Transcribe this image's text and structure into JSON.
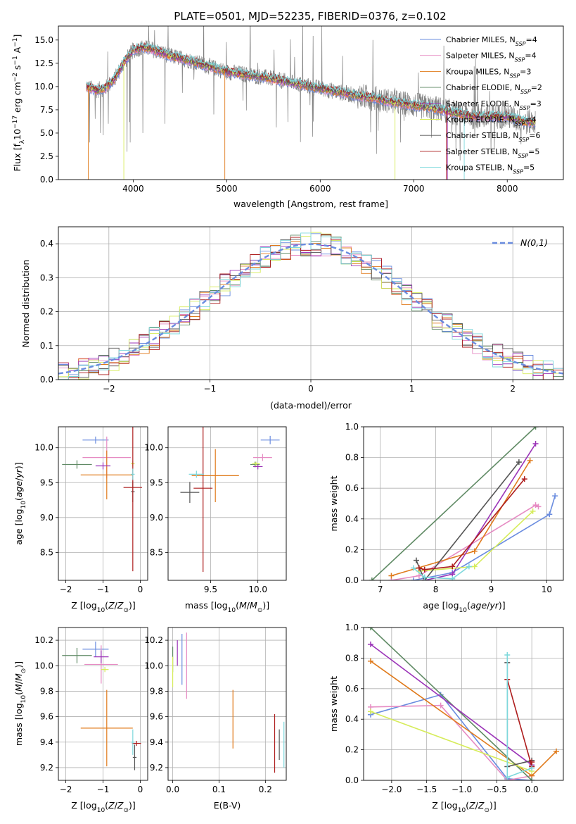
{
  "figure_title": "PLATE=0501, MJD=52235, FIBERID=0376, z=0.102",
  "colors": {
    "Chabrier MILES": "#6a8cdf",
    "Salpeter MILES": "#e68bc3",
    "Kroupa MILES": "#e07b1c",
    "Chabrier ELODIE": "#5f8a64",
    "Salpeter ELODIE": "#9b34b8",
    "Kroupa ELODIE": "#d6ec5a",
    "Chabrier STELIB": "#555555",
    "Salpeter STELIB": "#ae1d1d",
    "Kroupa STELIB": "#7dd8dc",
    "data": "#808080"
  },
  "chart_data": [
    {
      "id": "spectrum",
      "type": "line",
      "title": "PLATE=0501, MJD=52235, FIBERID=0376, z=0.102",
      "xlabel": "wavelength [Angstrom, rest frame]",
      "ylabel": "Flux [f_λ 10^-17 erg cm^-2 s^-1 A^-1]",
      "xlim": [
        3200,
        8600
      ],
      "ylim": [
        0,
        16.5
      ],
      "xticks": [
        4000,
        5000,
        6000,
        7000,
        8000
      ],
      "yticks": [
        0.0,
        2.5,
        5.0,
        7.5,
        10.0,
        12.5,
        15.0
      ],
      "grid": false,
      "legend_position": "top-right",
      "continuum": {
        "x": [
          3500,
          3600,
          3700,
          3800,
          3900,
          4000,
          4100,
          4200,
          4400,
          4600,
          4800,
          5000,
          5200,
          5400,
          5600,
          5800,
          6000,
          6200,
          6400,
          6600,
          6800,
          7000,
          7200,
          7400,
          7600,
          7800,
          8000,
          8200
        ],
        "y": [
          10.0,
          9.6,
          9.8,
          10.8,
          12.6,
          13.9,
          14.2,
          14.0,
          13.3,
          12.8,
          12.2,
          11.6,
          11.3,
          11.0,
          10.6,
          10.2,
          9.8,
          9.4,
          9.0,
          8.7,
          8.3,
          8.0,
          7.7,
          7.3,
          6.8,
          6.8,
          6.8,
          6.2
        ]
      },
      "series": [
        {
          "name": "Chabrier MILES",
          "nssp": "4",
          "color": "#6a8cdf"
        },
        {
          "name": "Salpeter MILES",
          "nssp": "4",
          "color": "#e68bc3"
        },
        {
          "name": "Kroupa MILES",
          "nssp": "3",
          "color": "#e07b1c"
        },
        {
          "name": "Chabrier ELODIE",
          "nssp": "2",
          "color": "#5f8a64"
        },
        {
          "name": "Salpeter ELODIE",
          "nssp": "3",
          "color": "#9b34b8"
        },
        {
          "name": "Kroupa ELODIE",
          "nssp": "4",
          "color": "#d6ec5a"
        },
        {
          "name": "Chabrier STELIB",
          "nssp": "6",
          "color": "#555555"
        },
        {
          "name": "Salpeter STELIB",
          "nssp": "5",
          "color": "#ae1d1d"
        },
        {
          "name": "Kroupa STELIB",
          "nssp": "5",
          "color": "#7dd8dc"
        }
      ]
    },
    {
      "id": "residuals",
      "type": "line",
      "xlabel": "(data-model)/error",
      "ylabel": "Normed distribution",
      "xlim": [
        -2.5,
        2.5
      ],
      "ylim": [
        0,
        0.45
      ],
      "xticks": [
        -2,
        -1,
        0,
        1,
        2
      ],
      "yticks": [
        0.0,
        0.1,
        0.2,
        0.3,
        0.4
      ],
      "grid": true,
      "legend_position": "top-right",
      "reference_label": "N(0,1)",
      "bin_width": 0.1
    },
    {
      "id": "age_vs_Z",
      "type": "scatter",
      "xlabel": "Z [log10(Z/Z⊙)]",
      "ylabel": "age [log10(age/yr)]",
      "xlim": [
        -2.2,
        0.2
      ],
      "ylim": [
        8.1,
        10.3
      ],
      "xticks": [
        -2,
        -1,
        0
      ],
      "yticks": [
        8.5,
        9.0,
        9.5,
        10.0
      ],
      "grid": true,
      "points": [
        {
          "series": "Chabrier MILES",
          "x": -1.2,
          "y": 10.11,
          "xerr": 0.35,
          "yerr": 0.05,
          "color": "#6a8cdf"
        },
        {
          "series": "Salpeter MILES",
          "x": -0.9,
          "y": 9.86,
          "xerr": 0.65,
          "yerr": 0.3,
          "color": "#e68bc3"
        },
        {
          "series": "Kroupa MILES",
          "x": -0.9,
          "y": 9.61,
          "xerr": 0.7,
          "yerr": 0.35,
          "color": "#e07b1c"
        },
        {
          "series": "Chabrier ELODIE",
          "x": -1.7,
          "y": 9.76,
          "xerr": 0.4,
          "yerr": 0.06,
          "color": "#5f8a64"
        },
        {
          "series": "Salpeter ELODIE",
          "x": -1.0,
          "y": 9.74,
          "xerr": 0.2,
          "yerr": 0.05,
          "color": "#9b34b8"
        },
        {
          "series": "Kroupa ELODIE",
          "x": -0.2,
          "y": 9.77,
          "xerr": 0.05,
          "yerr": 0.04,
          "color": "#d6ec5a"
        },
        {
          "series": "Chabrier STELIB",
          "x": -0.2,
          "y": 9.37,
          "xerr": 0.05,
          "yerr": 0.15,
          "color": "#555555"
        },
        {
          "series": "Salpeter STELIB",
          "x": -0.2,
          "y": 9.43,
          "xerr": 0.25,
          "yerr": 1.2,
          "color": "#ae1d1d"
        },
        {
          "series": "Kroupa STELIB",
          "x": -0.2,
          "y": 9.62,
          "xerr": 0.05,
          "yerr": 0.08,
          "color": "#7dd8dc"
        }
      ]
    },
    {
      "id": "age_vs_mass",
      "type": "scatter",
      "xlabel": "mass [log10(M/M⊙)]",
      "ylabel": "",
      "xlim": [
        9.05,
        10.3
      ],
      "ylim": [
        8.1,
        10.3
      ],
      "xticks": [
        9.5,
        10.0
      ],
      "yticks": [
        8.5,
        9.0,
        9.5,
        10.0
      ],
      "grid": true,
      "points": [
        {
          "series": "Chabrier MILES",
          "x": 10.13,
          "y": 10.11,
          "xerr": 0.1,
          "yerr": 0.06,
          "color": "#6a8cdf"
        },
        {
          "series": "Salpeter MILES",
          "x": 10.05,
          "y": 9.86,
          "xerr": 0.1,
          "yerr": 0.05,
          "color": "#e68bc3"
        },
        {
          "series": "Kroupa MILES",
          "x": 9.55,
          "y": 9.6,
          "xerr": 0.25,
          "yerr": 0.38,
          "color": "#e07b1c"
        },
        {
          "series": "Chabrier ELODIE",
          "x": 9.97,
          "y": 9.76,
          "xerr": 0.05,
          "yerr": 0.04,
          "color": "#5f8a64"
        },
        {
          "series": "Salpeter ELODIE",
          "x": 10.0,
          "y": 9.73,
          "xerr": 0.05,
          "yerr": 0.04,
          "color": "#9b34b8"
        },
        {
          "series": "Kroupa ELODIE",
          "x": 9.98,
          "y": 9.77,
          "xerr": 0.04,
          "yerr": 0.03,
          "color": "#d6ec5a"
        },
        {
          "series": "Chabrier STELIB",
          "x": 9.28,
          "y": 9.36,
          "xerr": 0.1,
          "yerr": 0.15,
          "color": "#555555"
        },
        {
          "series": "Salpeter STELIB",
          "x": 9.42,
          "y": 9.42,
          "xerr": 0.1,
          "yerr": 1.2,
          "color": "#ae1d1d"
        },
        {
          "series": "Kroupa STELIB",
          "x": 9.35,
          "y": 9.62,
          "xerr": 0.08,
          "yerr": 0.05,
          "color": "#7dd8dc"
        }
      ]
    },
    {
      "id": "weight_vs_age",
      "type": "line",
      "xlabel": "age [log10(age/yr)]",
      "ylabel": "mass weight",
      "xlim": [
        6.7,
        10.3
      ],
      "ylim": [
        0,
        1.0
      ],
      "xticks": [
        7,
        8,
        9,
        10
      ],
      "yticks": [
        0.0,
        0.2,
        0.4,
        0.6,
        0.8,
        1.0
      ],
      "grid": true,
      "series": [
        {
          "name": "Chabrier MILES",
          "color": "#6a8cdf",
          "x": [
            7.6,
            8.3,
            10.05,
            10.15
          ],
          "y": [
            0.0,
            0.05,
            0.43,
            0.55
          ]
        },
        {
          "name": "Salpeter MILES",
          "color": "#e68bc3",
          "x": [
            7.2,
            7.7,
            9.8,
            9.85
          ],
          "y": [
            0.0,
            0.03,
            0.49,
            0.48
          ]
        },
        {
          "name": "Kroupa MILES",
          "color": "#e07b1c",
          "x": [
            7.2,
            8.7,
            9.7
          ],
          "y": [
            0.03,
            0.19,
            0.78
          ]
        },
        {
          "name": "Chabrier ELODIE",
          "color": "#5f8a64",
          "x": [
            6.85,
            9.8
          ],
          "y": [
            0.0,
            1.0
          ]
        },
        {
          "name": "Salpeter ELODIE",
          "color": "#9b34b8",
          "x": [
            7.8,
            8.3,
            9.8
          ],
          "y": [
            0.0,
            0.04,
            0.89
          ]
        },
        {
          "name": "Kroupa ELODIE",
          "color": "#d6ec5a",
          "x": [
            7.7,
            8.7,
            9.75
          ],
          "y": [
            0.06,
            0.09,
            0.45
          ]
        },
        {
          "name": "Chabrier STELIB",
          "color": "#555555",
          "x": [
            7.65,
            7.8,
            9.5
          ],
          "y": [
            0.13,
            0.0,
            0.77
          ]
        },
        {
          "name": "Salpeter STELIB",
          "color": "#ae1d1d",
          "x": [
            7.7,
            7.8,
            8.3,
            9.6
          ],
          "y": [
            0.08,
            0.07,
            0.09,
            0.66
          ]
        },
        {
          "name": "Kroupa STELIB",
          "color": "#7dd8dc",
          "x": [
            7.6,
            7.8,
            8.3,
            8.6
          ],
          "y": [
            0.08,
            0.02,
            0.01,
            0.09
          ]
        }
      ]
    },
    {
      "id": "mass_vs_Z",
      "type": "scatter",
      "xlabel": "Z [log10(Z/Z⊙)]",
      "ylabel": "mass [log10(M/M⊙)]",
      "xlim": [
        -2.2,
        0.2
      ],
      "ylim": [
        9.1,
        10.3
      ],
      "xticks": [
        -2,
        -1,
        0
      ],
      "yticks": [
        9.2,
        9.4,
        9.6,
        9.8,
        10.0,
        10.2
      ],
      "grid": true,
      "points": [
        {
          "series": "Chabrier MILES",
          "x": -1.2,
          "y": 10.13,
          "xerr": 0.35,
          "yerr": 0.06,
          "color": "#6a8cdf"
        },
        {
          "series": "Salpeter MILES",
          "x": -1.05,
          "y": 10.01,
          "xerr": 0.45,
          "yerr": 0.15,
          "color": "#e68bc3"
        },
        {
          "series": "Kroupa MILES",
          "x": -0.9,
          "y": 9.51,
          "xerr": 0.7,
          "yerr": 0.3,
          "color": "#e07b1c"
        },
        {
          "series": "Chabrier ELODIE",
          "x": -1.7,
          "y": 10.08,
          "xerr": 0.4,
          "yerr": 0.06,
          "color": "#5f8a64"
        },
        {
          "series": "Salpeter ELODIE",
          "x": -1.05,
          "y": 10.07,
          "xerr": 0.2,
          "yerr": 0.05,
          "color": "#9b34b8"
        },
        {
          "series": "Kroupa ELODIE",
          "x": -0.95,
          "y": 9.97,
          "xerr": 0.1,
          "yerr": 0.02,
          "color": "#d6ec5a"
        },
        {
          "series": "Chabrier STELIB",
          "x": -0.15,
          "y": 9.28,
          "xerr": 0.05,
          "yerr": 0.1,
          "color": "#555555"
        },
        {
          "series": "Salpeter STELIB",
          "x": -0.1,
          "y": 9.39,
          "xerr": 0.12,
          "yerr": 0.02,
          "color": "#ae1d1d"
        },
        {
          "series": "Kroupa STELIB",
          "x": -0.2,
          "y": 9.4,
          "xerr": 0.05,
          "yerr": 0.1,
          "color": "#7dd8dc"
        }
      ]
    },
    {
      "id": "mass_vs_EBV",
      "type": "scatter",
      "xlabel": "E(B-V)",
      "ylabel": "",
      "xlim": [
        -0.01,
        0.245
      ],
      "ylim": [
        9.1,
        10.3
      ],
      "xticks": [
        0.0,
        0.1,
        0.2
      ],
      "yticks": [
        9.2,
        9.4,
        9.6,
        9.8,
        10.0,
        10.2
      ],
      "grid": true,
      "points": [
        {
          "series": "Chabrier MILES",
          "x": 0.02,
          "y": 10.05,
          "xerr": 0.0,
          "yerr": 0.2,
          "color": "#6a8cdf"
        },
        {
          "series": "Salpeter MILES",
          "x": 0.03,
          "y": 10.0,
          "xerr": 0.0,
          "yerr": 0.26,
          "color": "#e68bc3"
        },
        {
          "series": "Kroupa MILES",
          "x": 0.13,
          "y": 9.58,
          "xerr": 0.0,
          "yerr": 0.23,
          "color": "#e07b1c"
        },
        {
          "series": "Chabrier ELODIE",
          "x": 0.0,
          "y": 10.05,
          "xerr": 0.0,
          "yerr": 0.1,
          "color": "#5f8a64"
        },
        {
          "series": "Salpeter ELODIE",
          "x": 0.01,
          "y": 10.1,
          "xerr": 0.0,
          "yerr": 0.1,
          "color": "#9b34b8"
        },
        {
          "series": "Kroupa ELODIE",
          "x": 0.0,
          "y": 9.95,
          "xerr": 0.0,
          "yerr": 0.12,
          "color": "#d6ec5a"
        },
        {
          "series": "Chabrier STELIB",
          "x": 0.23,
          "y": 9.38,
          "xerr": 0.0,
          "yerr": 0.12,
          "color": "#555555"
        },
        {
          "series": "Salpeter STELIB",
          "x": 0.22,
          "y": 9.39,
          "xerr": 0.0,
          "yerr": 0.23,
          "color": "#ae1d1d"
        },
        {
          "series": "Kroupa STELIB",
          "x": 0.24,
          "y": 9.38,
          "xerr": 0.0,
          "yerr": 0.18,
          "color": "#7dd8dc"
        }
      ]
    },
    {
      "id": "weight_vs_Z",
      "type": "line",
      "xlabel": "Z [log10(Z/Z⊙)]",
      "ylabel": "mass weight",
      "xlim": [
        -2.4,
        0.45
      ],
      "ylim": [
        0,
        1.0
      ],
      "xticks": [
        -2.0,
        -1.5,
        -1.0,
        -0.5,
        0.0
      ],
      "yticks": [
        0.0,
        0.2,
        0.4,
        0.6,
        0.8,
        1.0
      ],
      "grid": true,
      "series": [
        {
          "name": "Chabrier MILES",
          "color": "#6a8cdf",
          "x": [
            -2.3,
            -1.3,
            -0.35,
            0.0
          ],
          "y": [
            0.43,
            0.56,
            0.01,
            0.0
          ]
        },
        {
          "name": "Salpeter MILES",
          "color": "#e68bc3",
          "x": [
            -2.3,
            -1.3,
            -0.35,
            0.0
          ],
          "y": [
            0.48,
            0.49,
            0.0,
            0.03
          ]
        },
        {
          "name": "Kroupa MILES",
          "color": "#e07b1c",
          "x": [
            -2.3,
            0.0,
            0.35
          ],
          "y": [
            0.78,
            0.03,
            0.19
          ]
        },
        {
          "name": "Chabrier ELODIE",
          "color": "#5f8a64",
          "x": [
            -2.3,
            0.0
          ],
          "y": [
            1.0,
            0.0
          ]
        },
        {
          "name": "Salpeter ELODIE",
          "color": "#9b34b8",
          "x": [
            -2.3,
            0.0
          ],
          "y": [
            0.89,
            0.1
          ]
        },
        {
          "name": "Kroupa ELODIE",
          "color": "#d6ec5a",
          "x": [
            -2.3,
            0.0
          ],
          "y": [
            0.45,
            0.06
          ]
        },
        {
          "name": "Chabrier STELIB",
          "color": "#555555",
          "x": [
            -0.35,
            -0.35,
            0.0
          ],
          "y": [
            0.77,
            0.09,
            0.13
          ]
        },
        {
          "name": "Salpeter STELIB",
          "color": "#ae1d1d",
          "x": [
            -0.35,
            0.0,
            0.0
          ],
          "y": [
            0.66,
            0.09,
            0.12
          ]
        },
        {
          "name": "Kroupa STELIB",
          "color": "#7dd8dc",
          "x": [
            -0.35,
            -0.35,
            0.0
          ],
          "y": [
            0.82,
            0.02,
            0.08
          ]
        }
      ]
    }
  ]
}
